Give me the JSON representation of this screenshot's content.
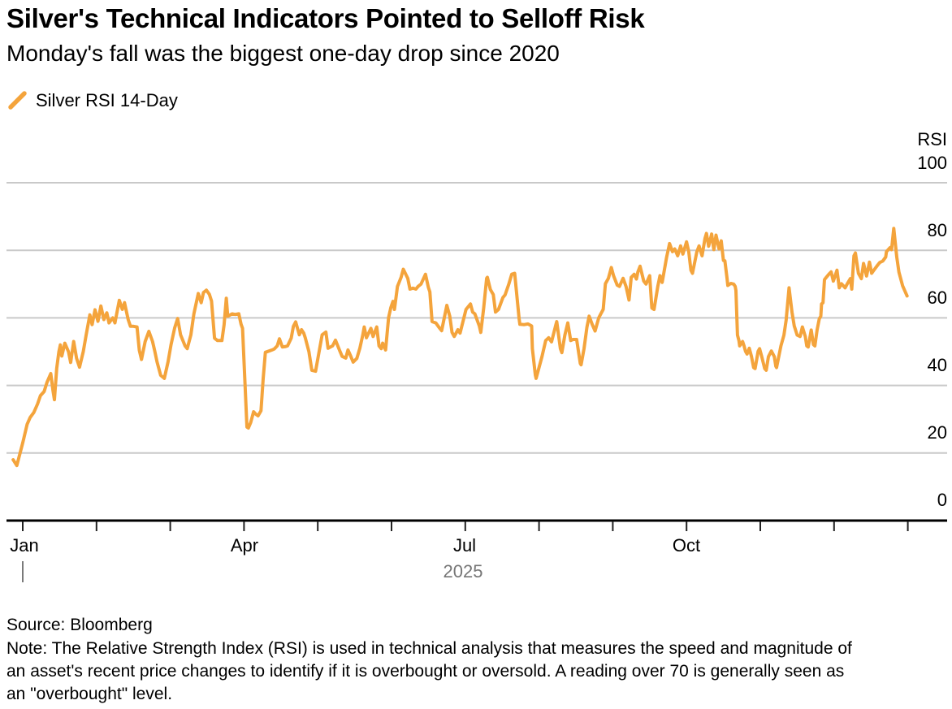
{
  "header": {
    "title": "Silver's Technical Indicators Pointed to Selloff Risk",
    "subtitle": "Monday's fall was the biggest one-day drop since 2020"
  },
  "legend": {
    "marker_icon": "orange-slash-icon",
    "label": "Silver RSI 14-Day"
  },
  "footer": {
    "source": "Source: Bloomberg",
    "note_lines": [
      "Note: The Relative Strength Index (RSI) is used in technical analysis that measures the speed and magnitude of",
      "an asset's recent price changes to identify if it is overbought or oversold. A reading over 70 is generally seen as",
      "an \"overbought\" level."
    ]
  },
  "colors": {
    "line": "#F4A43C",
    "grid": "#C9C9C9",
    "axis": "#000000",
    "tick": "#222222",
    "muted_text": "#767676",
    "text": "#000000"
  },
  "chart_data": {
    "type": "line",
    "title": "Silver's Technical Indicators Pointed to Selloff Risk",
    "series_name": "Silver RSI 14-Day",
    "y_axis_title": "RSI",
    "y_tick_labels": [
      "100",
      "80",
      "60",
      "40",
      "20",
      "0"
    ],
    "y_ticks": [
      100,
      80,
      60,
      40,
      20,
      0
    ],
    "ylim": [
      0,
      100
    ],
    "x_unit": "months_since_jan1_2025",
    "xlim": [
      -0.25,
      12.15
    ],
    "x_month_ticks": [
      0,
      1,
      2,
      3,
      4,
      5,
      6,
      7,
      8,
      9,
      10,
      11,
      12
    ],
    "x_tick_labels": {
      "jan": "Jan",
      "apr": "Apr",
      "jul": "Jul",
      "oct": "Oct"
    },
    "year_label": "2025",
    "grid": "horizontal_only",
    "legend_position": "top-left",
    "points": [
      [
        -0.13,
        18
      ],
      [
        -0.08,
        16.3
      ],
      [
        0,
        23
      ],
      [
        0.06,
        28.5
      ],
      [
        0.1,
        30.5
      ],
      [
        0.15,
        32
      ],
      [
        0.2,
        34.5
      ],
      [
        0.24,
        37
      ],
      [
        0.29,
        38.2
      ],
      [
        0.33,
        41
      ],
      [
        0.38,
        43.5
      ],
      [
        0.41,
        38.5
      ],
      [
        0.43,
        35.8
      ],
      [
        0.46,
        45
      ],
      [
        0.49,
        50
      ],
      [
        0.51,
        52
      ],
      [
        0.53,
        48.7
      ],
      [
        0.57,
        52.5
      ],
      [
        0.62,
        50
      ],
      [
        0.65,
        46.8
      ],
      [
        0.69,
        53
      ],
      [
        0.73,
        48
      ],
      [
        0.77,
        45.4
      ],
      [
        0.82,
        50
      ],
      [
        0.86,
        55
      ],
      [
        0.91,
        60.9
      ],
      [
        0.94,
        58
      ],
      [
        0.98,
        62.4
      ],
      [
        1.02,
        59
      ],
      [
        1.06,
        63.5
      ],
      [
        1.1,
        59.5
      ],
      [
        1.14,
        61.5
      ],
      [
        1.17,
        58.5
      ],
      [
        1.22,
        60
      ],
      [
        1.25,
        58.5
      ],
      [
        1.29,
        63
      ],
      [
        1.31,
        65.2
      ],
      [
        1.35,
        62.5
      ],
      [
        1.38,
        64.5
      ],
      [
        1.43,
        59.5
      ],
      [
        1.46,
        57.5
      ],
      [
        1.5,
        57.5
      ],
      [
        1.55,
        57.3
      ],
      [
        1.58,
        50.4
      ],
      [
        1.61,
        47.7
      ],
      [
        1.66,
        53
      ],
      [
        1.71,
        56
      ],
      [
        1.76,
        53
      ],
      [
        1.79,
        50.2
      ],
      [
        1.82,
        47
      ],
      [
        1.87,
        43
      ],
      [
        1.92,
        42.1
      ],
      [
        1.97,
        47
      ],
      [
        2.01,
        52
      ],
      [
        2.06,
        57
      ],
      [
        2.1,
        59.8
      ],
      [
        2.14,
        55
      ],
      [
        2.2,
        51.7
      ],
      [
        2.23,
        50.9
      ],
      [
        2.28,
        55
      ],
      [
        2.32,
        61.2
      ],
      [
        2.38,
        67.2
      ],
      [
        2.42,
        64.5
      ],
      [
        2.45,
        67.5
      ],
      [
        2.49,
        68.2
      ],
      [
        2.53,
        67
      ],
      [
        2.56,
        65
      ],
      [
        2.6,
        54
      ],
      [
        2.64,
        53.3
      ],
      [
        2.7,
        53.3
      ],
      [
        2.73,
        58
      ],
      [
        2.76,
        65.8
      ],
      [
        2.78,
        60.5
      ],
      [
        2.84,
        61.2
      ],
      [
        2.88,
        61
      ],
      [
        2.93,
        61.2
      ],
      [
        2.96,
        58.1
      ],
      [
        2.98,
        56.9
      ],
      [
        3.04,
        27.7
      ],
      [
        3.06,
        27.4
      ],
      [
        3.09,
        29
      ],
      [
        3.13,
        32.2
      ],
      [
        3.16,
        31.5
      ],
      [
        3.19,
        31
      ],
      [
        3.23,
        32.5
      ],
      [
        3.26,
        42
      ],
      [
        3.29,
        49.8
      ],
      [
        3.34,
        50.2
      ],
      [
        3.38,
        50.5
      ],
      [
        3.41,
        50.8
      ],
      [
        3.45,
        51.7
      ],
      [
        3.48,
        53.8
      ],
      [
        3.52,
        51.4
      ],
      [
        3.56,
        51.5
      ],
      [
        3.59,
        51.7
      ],
      [
        3.64,
        54
      ],
      [
        3.67,
        57.5
      ],
      [
        3.7,
        58.8
      ],
      [
        3.75,
        55
      ],
      [
        3.78,
        56.5
      ],
      [
        3.81,
        55.5
      ],
      [
        3.83,
        54.1
      ],
      [
        3.88,
        50
      ],
      [
        3.92,
        44.5
      ],
      [
        3.97,
        44.2
      ],
      [
        4.01,
        49
      ],
      [
        4.06,
        55
      ],
      [
        4.11,
        55.8
      ],
      [
        4.14,
        51
      ],
      [
        4.2,
        51.7
      ],
      [
        4.24,
        53.4
      ],
      [
        4.3,
        50.2
      ],
      [
        4.33,
        48.6
      ],
      [
        4.38,
        48.1
      ],
      [
        4.41,
        50.5
      ],
      [
        4.44,
        49
      ],
      [
        4.48,
        46.9
      ],
      [
        4.53,
        48
      ],
      [
        4.57,
        51
      ],
      [
        4.61,
        54.9
      ],
      [
        4.63,
        57.3
      ],
      [
        4.66,
        54.1
      ],
      [
        4.72,
        56.9
      ],
      [
        4.75,
        54.5
      ],
      [
        4.8,
        57.3
      ],
      [
        4.83,
        51.7
      ],
      [
        4.86,
        50.9
      ],
      [
        4.88,
        52.5
      ],
      [
        4.92,
        50.5
      ],
      [
        4.96,
        60.1
      ],
      [
        4.99,
        63
      ],
      [
        5.02,
        64.9
      ],
      [
        5.04,
        62.5
      ],
      [
        5.08,
        69.3
      ],
      [
        5.13,
        72
      ],
      [
        5.16,
        74.4
      ],
      [
        5.22,
        71.7
      ],
      [
        5.25,
        68.5
      ],
      [
        5.29,
        68.8
      ],
      [
        5.33,
        68.5
      ],
      [
        5.36,
        69.3
      ],
      [
        5.4,
        70
      ],
      [
        5.46,
        72.9
      ],
      [
        5.5,
        69
      ],
      [
        5.52,
        67.7
      ],
      [
        5.55,
        58.9
      ],
      [
        5.6,
        58.5
      ],
      [
        5.64,
        57.3
      ],
      [
        5.68,
        56.2
      ],
      [
        5.75,
        63.7
      ],
      [
        5.79,
        60.5
      ],
      [
        5.82,
        55.7
      ],
      [
        5.85,
        54.5
      ],
      [
        5.9,
        56.5
      ],
      [
        5.93,
        55.5
      ],
      [
        6.01,
        62.5
      ],
      [
        6.07,
        64.1
      ],
      [
        6.1,
        61.7
      ],
      [
        6.13,
        61.2
      ],
      [
        6.19,
        57.6
      ],
      [
        6.21,
        55.7
      ],
      [
        6.25,
        63
      ],
      [
        6.29,
        71.7
      ],
      [
        6.3,
        72
      ],
      [
        6.34,
        68.4
      ],
      [
        6.38,
        66.9
      ],
      [
        6.41,
        61.7
      ],
      [
        6.45,
        62.5
      ],
      [
        6.51,
        66
      ],
      [
        6.54,
        66.8
      ],
      [
        6.59,
        70
      ],
      [
        6.63,
        72.9
      ],
      [
        6.67,
        73.2
      ],
      [
        6.73,
        59.7
      ],
      [
        6.74,
        58.1
      ],
      [
        6.8,
        58
      ],
      [
        6.85,
        58.2
      ],
      [
        6.9,
        57.6
      ],
      [
        6.91,
        50.9
      ],
      [
        6.95,
        43
      ],
      [
        6.96,
        42.1
      ],
      [
        7.04,
        48.5
      ],
      [
        7.09,
        53.3
      ],
      [
        7.13,
        54.1
      ],
      [
        7.17,
        52.9
      ],
      [
        7.23,
        58.1
      ],
      [
        7.24,
        58.9
      ],
      [
        7.29,
        50.9
      ],
      [
        7.31,
        49.7
      ],
      [
        7.35,
        54.9
      ],
      [
        7.39,
        58.5
      ],
      [
        7.43,
        53.3
      ],
      [
        7.46,
        53.6
      ],
      [
        7.51,
        53.6
      ],
      [
        7.56,
        46.5
      ],
      [
        7.57,
        46.1
      ],
      [
        7.61,
        50.9
      ],
      [
        7.65,
        57.3
      ],
      [
        7.68,
        60.5
      ],
      [
        7.72,
        58.1
      ],
      [
        7.76,
        56.1
      ],
      [
        7.81,
        60
      ],
      [
        7.83,
        60.9
      ],
      [
        7.87,
        62.5
      ],
      [
        7.9,
        70.1
      ],
      [
        7.94,
        71.7
      ],
      [
        7.98,
        74.9
      ],
      [
        8.01,
        72.5
      ],
      [
        8.06,
        69.7
      ],
      [
        8.09,
        69.3
      ],
      [
        8.14,
        71.7
      ],
      [
        8.18,
        69.3
      ],
      [
        8.22,
        65.3
      ],
      [
        8.25,
        72
      ],
      [
        8.29,
        72.9
      ],
      [
        8.32,
        71.5
      ],
      [
        8.34,
        73.6
      ],
      [
        8.37,
        75.3
      ],
      [
        8.42,
        70.9
      ],
      [
        8.45,
        70
      ],
      [
        8.5,
        72.5
      ],
      [
        8.53,
        62.9
      ],
      [
        8.56,
        62.5
      ],
      [
        8.61,
        69.3
      ],
      [
        8.64,
        72.5
      ],
      [
        8.67,
        70.5
      ],
      [
        8.73,
        78
      ],
      [
        8.77,
        82
      ],
      [
        8.81,
        79.6
      ],
      [
        8.84,
        80.4
      ],
      [
        8.88,
        78.4
      ],
      [
        8.92,
        81.3
      ],
      [
        8.95,
        78.9
      ],
      [
        9,
        82.5
      ],
      [
        9.03,
        79.6
      ],
      [
        9.06,
        74.1
      ],
      [
        9.08,
        73.2
      ],
      [
        9.14,
        79.6
      ],
      [
        9.17,
        81.3
      ],
      [
        9.21,
        78.4
      ],
      [
        9.25,
        83.5
      ],
      [
        9.27,
        85
      ],
      [
        9.3,
        81.2
      ],
      [
        9.34,
        84.8
      ],
      [
        9.37,
        80.2
      ],
      [
        9.4,
        84.5
      ],
      [
        9.44,
        80.4
      ],
      [
        9.47,
        82.8
      ],
      [
        9.5,
        77
      ],
      [
        9.52,
        76.9
      ],
      [
        9.55,
        71.6
      ],
      [
        9.56,
        69.6
      ],
      [
        9.6,
        70.2
      ],
      [
        9.64,
        70
      ],
      [
        9.66,
        69.3
      ],
      [
        9.67,
        68.1
      ],
      [
        9.69,
        54.9
      ],
      [
        9.71,
        53.3
      ],
      [
        9.72,
        51.7
      ],
      [
        9.76,
        53
      ],
      [
        9.78,
        51.7
      ],
      [
        9.8,
        50.1
      ],
      [
        9.82,
        49.3
      ],
      [
        9.85,
        51
      ],
      [
        9.88,
        48.6
      ],
      [
        9.91,
        45.3
      ],
      [
        9.93,
        45
      ],
      [
        9.97,
        50.1
      ],
      [
        9.99,
        50.9
      ],
      [
        10.02,
        48.5
      ],
      [
        10.06,
        45
      ],
      [
        10.08,
        44.5
      ],
      [
        10.11,
        48.5
      ],
      [
        10.15,
        50.2
      ],
      [
        10.19,
        48.5
      ],
      [
        10.21,
        45.7
      ],
      [
        10.22,
        45.3
      ],
      [
        10.28,
        51.7
      ],
      [
        10.32,
        54.9
      ],
      [
        10.35,
        59.3
      ],
      [
        10.39,
        68.9
      ],
      [
        10.43,
        61.7
      ],
      [
        10.46,
        57.6
      ],
      [
        10.5,
        54.9
      ],
      [
        10.54,
        54.5
      ],
      [
        10.57,
        57.3
      ],
      [
        10.61,
        54.5
      ],
      [
        10.63,
        51.7
      ],
      [
        10.65,
        51.4
      ],
      [
        10.69,
        56.4
      ],
      [
        10.72,
        52.1
      ],
      [
        10.74,
        51.7
      ],
      [
        10.77,
        56.4
      ],
      [
        10.8,
        59.7
      ],
      [
        10.82,
        60.5
      ],
      [
        10.83,
        64.1
      ],
      [
        10.85,
        64.5
      ],
      [
        10.87,
        71.3
      ],
      [
        10.88,
        71.6
      ],
      [
        10.93,
        72.9
      ],
      [
        10.96,
        73.6
      ],
      [
        10.99,
        70.9
      ],
      [
        11.04,
        74.1
      ],
      [
        11.07,
        68.9
      ],
      [
        11.1,
        70.1
      ],
      [
        11.15,
        68.9
      ],
      [
        11.18,
        70.1
      ],
      [
        11.22,
        71.6
      ],
      [
        11.24,
        68.5
      ],
      [
        11.27,
        78.4
      ],
      [
        11.29,
        79.2
      ],
      [
        11.33,
        73.2
      ],
      [
        11.37,
        71.6
      ],
      [
        11.4,
        76.1
      ],
      [
        11.44,
        72.4
      ],
      [
        11.48,
        76.5
      ],
      [
        11.51,
        73.2
      ],
      [
        11.55,
        74.4
      ],
      [
        11.59,
        75.6
      ],
      [
        11.62,
        76.4
      ],
      [
        11.66,
        76.8
      ],
      [
        11.7,
        78
      ],
      [
        11.71,
        79.6
      ],
      [
        11.76,
        80.8
      ],
      [
        11.78,
        80.2
      ],
      [
        11.81,
        86.5
      ],
      [
        11.85,
        78
      ],
      [
        11.88,
        73.5
      ],
      [
        11.93,
        69.5
      ],
      [
        11.99,
        66.5
      ]
    ]
  }
}
